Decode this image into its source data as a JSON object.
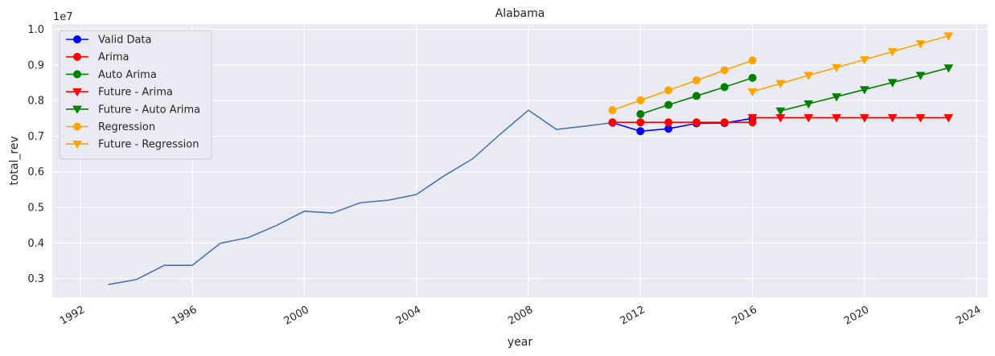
{
  "chart_data": {
    "type": "line",
    "title": "Alabama",
    "xlabel": "year",
    "ylabel": "total_rev",
    "y_scale_label": "1e7",
    "xlim": [
      1991.0,
      2024.4
    ],
    "ylim": [
      2470000,
      10150000
    ],
    "x_ticks": [
      1992,
      1996,
      2000,
      2004,
      2008,
      2012,
      2016,
      2020,
      2024
    ],
    "x_tick_labels": [
      "1992",
      "1996",
      "2000",
      "2004",
      "2008",
      "2012",
      "2016",
      "2020",
      "2024"
    ],
    "y_ticks": [
      3000000,
      4000000,
      5000000,
      6000000,
      7000000,
      8000000,
      9000000,
      10000000
    ],
    "y_tick_labels": [
      "0.3",
      "0.4",
      "0.5",
      "0.6",
      "0.7",
      "0.8",
      "0.9",
      "1.0"
    ],
    "grid": true,
    "legend_position": "top-left",
    "colors": {
      "background": "#eaeaf2",
      "grid": "#ffffff",
      "history": "#4c72b0",
      "blue": "#0000ff",
      "red": "#ff0000",
      "green": "#008000",
      "orange": "#ffa500"
    },
    "series": [
      {
        "name": "",
        "color": "#4c72b0",
        "marker": "none",
        "in_legend": false,
        "x": [
          1993,
          1994,
          1995,
          1996,
          1997,
          1998,
          1999,
          2000,
          2001,
          2002,
          2003,
          2004,
          2005,
          2006,
          2007,
          2008,
          2009,
          2010,
          2011
        ],
        "y": [
          2830000,
          2970000,
          3370000,
          3370000,
          3990000,
          4150000,
          4490000,
          4890000,
          4840000,
          5130000,
          5200000,
          5360000,
          5890000,
          6360000,
          7060000,
          7730000,
          7190000,
          7280000,
          7380000
        ]
      },
      {
        "name": "Valid Data",
        "color": "#0000ff",
        "marker": "circle",
        "in_legend": true,
        "x": [
          2011,
          2012,
          2013,
          2014,
          2015,
          2016
        ],
        "y": [
          7380000,
          7140000,
          7210000,
          7360000,
          7370000,
          7500000
        ]
      },
      {
        "name": "Arima",
        "color": "#ff0000",
        "marker": "circle",
        "in_legend": true,
        "x": [
          2011,
          2012,
          2013,
          2014,
          2015,
          2016
        ],
        "y": [
          7390000,
          7390000,
          7390000,
          7390000,
          7390000,
          7390000
        ]
      },
      {
        "name": "Auto Arima",
        "color": "#008000",
        "marker": "circle",
        "in_legend": true,
        "x": [
          2012,
          2013,
          2014,
          2015,
          2016
        ],
        "y": [
          7620000,
          7880000,
          8130000,
          8380000,
          8640000
        ]
      },
      {
        "name": "Future - Arima",
        "color": "#ff0000",
        "marker": "triangle-down",
        "in_legend": true,
        "x": [
          2016,
          2017,
          2018,
          2019,
          2020,
          2021,
          2022,
          2023
        ],
        "y": [
          7520000,
          7520000,
          7520000,
          7520000,
          7520000,
          7520000,
          7520000,
          7520000
        ]
      },
      {
        "name": "Future - Auto Arima",
        "color": "#008000",
        "marker": "triangle-down",
        "in_legend": true,
        "x": [
          2017,
          2018,
          2019,
          2020,
          2021,
          2022,
          2023
        ],
        "y": [
          7710000,
          7910000,
          8110000,
          8310000,
          8510000,
          8710000,
          8920000
        ]
      },
      {
        "name": "Regression",
        "color": "#ffa500",
        "marker": "circle",
        "in_legend": true,
        "x": [
          2011,
          2012,
          2013,
          2014,
          2015,
          2016
        ],
        "y": [
          7730000,
          8010000,
          8290000,
          8570000,
          8850000,
          9130000
        ]
      },
      {
        "name": "Future - Regression",
        "color": "#ffa500",
        "marker": "triangle-down",
        "in_legend": true,
        "x": [
          2016,
          2017,
          2018,
          2019,
          2020,
          2021,
          2022,
          2023
        ],
        "y": [
          8250000,
          8480000,
          8710000,
          8930000,
          9150000,
          9380000,
          9600000,
          9820000
        ]
      }
    ]
  }
}
